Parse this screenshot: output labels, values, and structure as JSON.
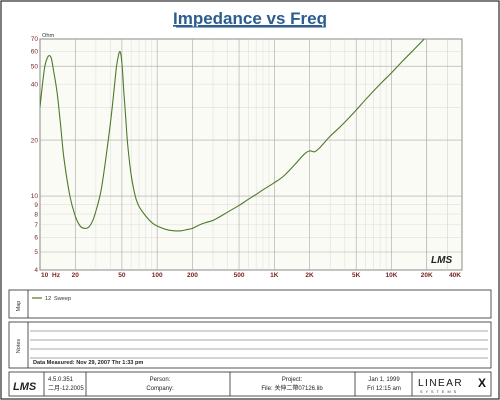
{
  "title": "Impedance vs Freq",
  "y_unit": "Ohm",
  "x_unit": "Hz",
  "logo_text": "LMS",
  "chart_data": {
    "type": "line",
    "title": "Impedance vs Freq",
    "xlabel": "Hz",
    "ylabel": "Ohm",
    "x_scale": "log",
    "y_scale": "log",
    "xlim": [
      10,
      40000
    ],
    "ylim": [
      4,
      70
    ],
    "grid": true,
    "x_ticks": [
      "10",
      "20",
      "50",
      "100",
      "200",
      "500",
      "1K",
      "2K",
      "5K",
      "10K",
      "20K",
      "40K"
    ],
    "x_tick_values": [
      10,
      20,
      50,
      100,
      200,
      500,
      1000,
      2000,
      5000,
      10000,
      20000,
      40000
    ],
    "y_ticks": [
      "70",
      "60",
      "50",
      "40",
      "20",
      "10",
      "9",
      "8",
      "7",
      "6",
      "5",
      "4"
    ],
    "y_tick_values": [
      70,
      60,
      50,
      40,
      20,
      10,
      9,
      8,
      7,
      6,
      5,
      4
    ],
    "series": [
      {
        "name": "Sweep",
        "color": "#4d7a2a",
        "x": [
          10,
          10.5,
          11,
          11.5,
          12,
          12.5,
          13,
          14,
          15,
          16,
          18,
          20,
          22,
          24,
          26,
          28,
          30,
          33,
          36,
          40,
          43,
          45,
          47,
          48,
          49,
          50,
          51,
          52,
          54,
          56,
          60,
          65,
          70,
          80,
          90,
          100,
          120,
          140,
          160,
          180,
          200,
          230,
          260,
          300,
          350,
          400,
          500,
          600,
          700,
          800,
          1000,
          1200,
          1500,
          1800,
          2000,
          2200,
          2400,
          2600,
          3000,
          3500,
          4000,
          5000,
          6000,
          8000,
          10000,
          12000,
          15000,
          20000,
          25000
        ],
        "y": [
          30,
          40,
          50,
          55,
          57,
          55,
          48,
          36,
          24,
          16,
          10,
          7.8,
          6.9,
          6.7,
          6.8,
          7.3,
          8.3,
          10.5,
          15,
          25,
          38,
          50,
          58,
          60,
          58,
          52,
          44,
          36,
          26,
          19,
          13,
          10,
          8.8,
          7.8,
          7.2,
          6.9,
          6.6,
          6.5,
          6.5,
          6.6,
          6.7,
          7.0,
          7.2,
          7.4,
          7.8,
          8.2,
          8.9,
          9.6,
          10.2,
          10.8,
          11.8,
          12.8,
          14.8,
          16.8,
          17.5,
          17.3,
          18,
          19,
          21,
          23,
          25,
          29,
          33,
          40,
          46,
          52,
          60,
          72,
          80
        ]
      }
    ]
  },
  "legend": {
    "side_label": "Map",
    "entry_num": "12",
    "entry_name": "Sweep"
  },
  "notes": {
    "side_label": "Notes",
    "data_measured": "Data Measured: Nov 29, 2007  Thr  1:33 pm"
  },
  "footer": {
    "version": "4.5.0.351",
    "version_date": "二月-12.2005",
    "person_label": "Person:",
    "company_label": "Company:",
    "project_label": "Project:",
    "file_label": "File: 关伸二帶07126.lib",
    "date": "Jan  1, 1999",
    "time": "Fri 12:15 am",
    "brand": "LINEAR",
    "brand_x": "X",
    "brand_sub": "S Y S T E M S"
  }
}
